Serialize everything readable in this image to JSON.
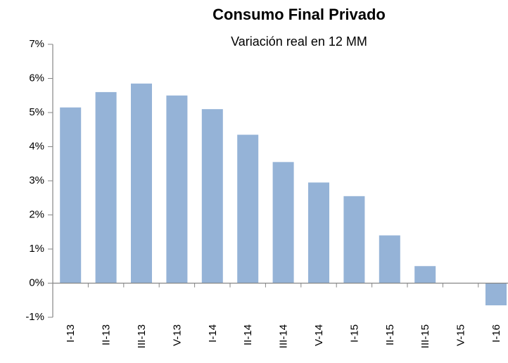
{
  "chart_data": {
    "type": "bar",
    "title": "Consumo Final Privado",
    "subtitle": "Variación real en 12 MM",
    "categories": [
      "I-13",
      "II-13",
      "III-13",
      "V-13",
      "I-14",
      "II-14",
      "III-14",
      "V-14",
      "I-15",
      "II-15",
      "III-15",
      "V-15",
      "I-16"
    ],
    "values": [
      5.15,
      5.6,
      5.85,
      5.5,
      5.1,
      4.35,
      3.55,
      2.95,
      2.55,
      1.4,
      0.5,
      0,
      -0.65
    ],
    "color": "#95b3d7",
    "ylim": [
      -1,
      7
    ],
    "yticks": [
      {
        "value": -1,
        "label": "-1%"
      },
      {
        "value": 0,
        "label": "0%"
      },
      {
        "value": 1,
        "label": "1%"
      },
      {
        "value": 2,
        "label": "2%"
      },
      {
        "value": 3,
        "label": "3%"
      },
      {
        "value": 4,
        "label": "4%"
      },
      {
        "value": 5,
        "label": "5%"
      },
      {
        "value": 6,
        "label": "6%"
      },
      {
        "value": 7,
        "label": "7%"
      }
    ],
    "grid": false
  }
}
